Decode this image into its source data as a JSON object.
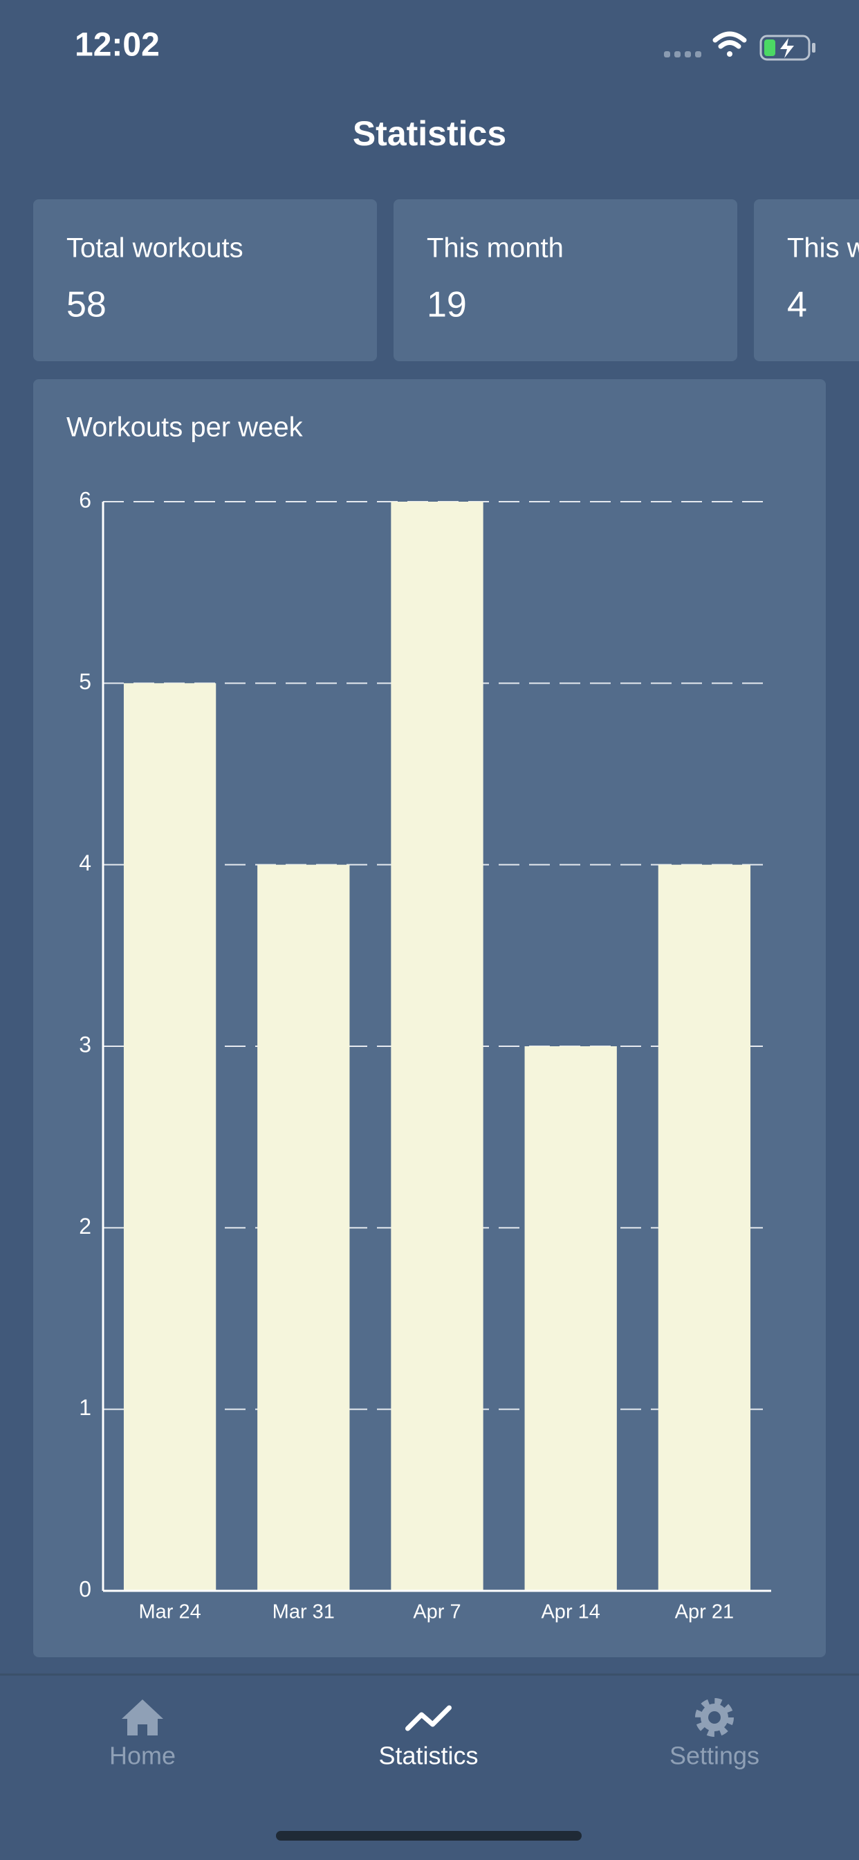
{
  "status_bar": {
    "time": "12:02"
  },
  "header": {
    "title": "Statistics"
  },
  "cards": [
    {
      "label": "Total workouts",
      "value": 58
    },
    {
      "label": "This month",
      "value": 19
    },
    {
      "label": "This week",
      "value": 4
    }
  ],
  "chart_data": {
    "type": "bar",
    "title": "Workouts per week",
    "categories": [
      "Mar 24",
      "Mar 31",
      "Apr 7",
      "Apr 14",
      "Apr 21"
    ],
    "values": [
      5,
      4,
      6,
      3,
      4
    ],
    "color": "#f5f5dc",
    "ylim": [
      0,
      6
    ],
    "yticks": [
      0,
      1,
      2,
      3,
      4,
      5,
      6
    ],
    "grid": true
  },
  "tab_bar": {
    "items": [
      {
        "label": "Home",
        "active": false
      },
      {
        "label": "Statistics",
        "active": true
      },
      {
        "label": "Settings",
        "active": false
      }
    ]
  }
}
